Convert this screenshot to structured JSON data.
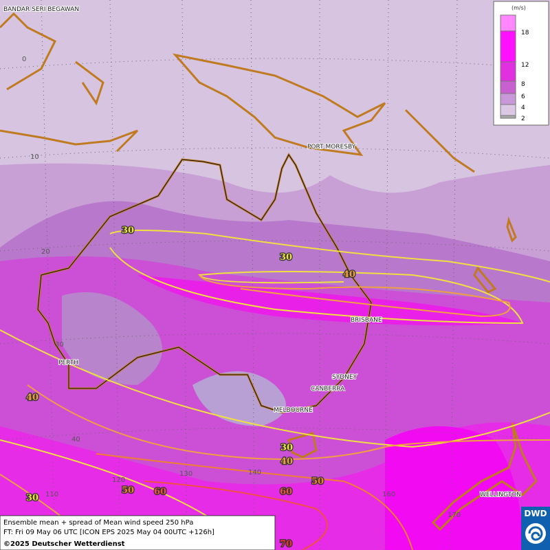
{
  "map": {
    "place_labels": [
      "BANDAR SERI BEGAWAN",
      "PORT MORESBY",
      "BRISBANE",
      "PERTH",
      "SYDNEY",
      "CANBERRA",
      "MELBOURNE",
      "WELLINGTON"
    ],
    "latitude_labels": [
      0,
      10,
      20,
      30,
      40
    ],
    "longitude_labels": [
      110,
      120,
      130,
      140,
      160,
      170
    ],
    "contour_labels": [
      30,
      30,
      40,
      30,
      40,
      40,
      50,
      60,
      30,
      50,
      60,
      70
    ]
  },
  "legend": {
    "unit": "(m/s)",
    "levels": [
      2,
      4,
      6,
      8,
      12,
      18
    ]
  },
  "caption": {
    "lines": [
      "Ensemble mean + spread of Mean wind speed 250 hPa",
      "FT: Fri 09 May 06 UTC [ICON EPS 2025 May 04 00UTC +126h]",
      "©2025 Deutscher Wetterdienst"
    ]
  },
  "logo": "DWD"
}
